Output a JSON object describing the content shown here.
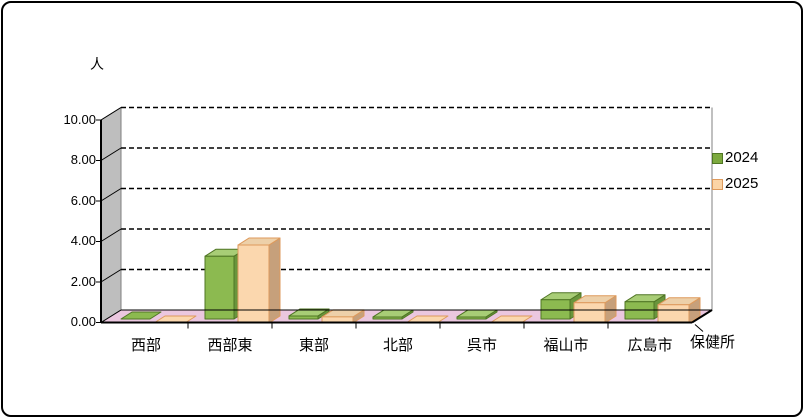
{
  "chart_data": {
    "type": "bar",
    "variant": "3d-clustered-column",
    "title": "",
    "unit_label": "人",
    "axis_end_label": "保健所",
    "categories": [
      "西部",
      "西部東",
      "東部",
      "北部",
      "呉市",
      "福山市",
      "広島市"
    ],
    "series": [
      {
        "name": "2024",
        "values": [
          0,
          3.1,
          0.15,
          0.1,
          0.1,
          0.95,
          0.85
        ],
        "color_face": "#8CBA50",
        "color_top": "#A8CD76",
        "color_side": "#69953C",
        "color_stroke": "#4F7524",
        "legend_fill": "#7CA93E"
      },
      {
        "name": "2025",
        "values": [
          0,
          3.85,
          0.3,
          0,
          0,
          1.0,
          0.9
        ],
        "color_face": "#FBD7AE",
        "color_top": "#EDD0A9",
        "color_side": "#C6A07B",
        "color_stroke": "#DE9A5C",
        "legend_fill": "#FBD4A6"
      }
    ],
    "ylim": [
      0,
      10
    ],
    "y_ticks": [
      "0.00",
      "2.00",
      "4.00",
      "6.00",
      "8.00",
      "10.00"
    ],
    "grid": true,
    "gridline_style": "dashed",
    "legend_position": "right",
    "colors": {
      "wall_fill": "#BEBEBE",
      "wall_stroke": "#7F7F7F",
      "floor_fill": "#EBC7DF",
      "axis_line": "#000000",
      "gridline": "#000000",
      "background": "#FFFFFF"
    }
  }
}
